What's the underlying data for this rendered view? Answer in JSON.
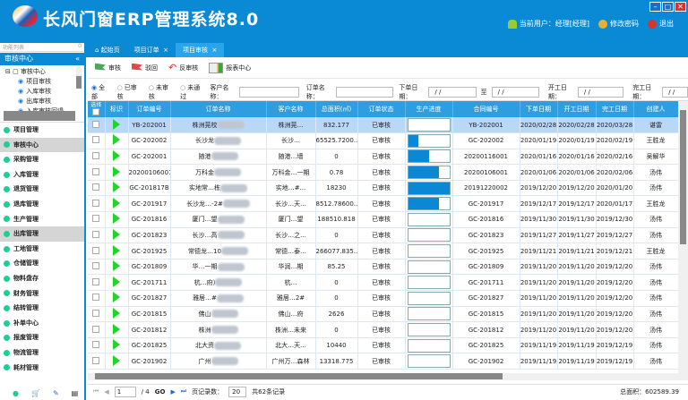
{
  "app": {
    "title": "长风门窗ERP管理系统8.0",
    "logo_icon": "swirl-logo"
  },
  "window": {
    "minimize": "–",
    "maximize": "□",
    "close": "✕"
  },
  "userbar": {
    "current_user": "当前用户：经理[经理]",
    "change_password": "修改密码",
    "logout": "退出"
  },
  "sidebar": {
    "search_placeholder": "功能列表",
    "search_badge": "0",
    "section": "审核中心",
    "collapse": "«",
    "tree": {
      "root": "审核中心",
      "items": [
        "项目审核",
        "入库审核",
        "出库审核",
        "入库审核回退"
      ]
    },
    "menu": [
      "项目管理",
      "审核中心",
      "采购管理",
      "入库管理",
      "退货管理",
      "退库管理",
      "生产管理",
      "出库管理",
      "工地管理",
      "仓储管理",
      "物料盘存",
      "财务管理",
      "结转管理",
      "补单中心",
      "报废管理",
      "物流管理",
      "耗材管理"
    ],
    "selected": [
      "审核中心",
      "出库管理"
    ]
  },
  "tabs": [
    {
      "label": "起始页"
    },
    {
      "label": "项目订单",
      "close": "×"
    },
    {
      "label": "项目审核",
      "close": "×",
      "active": true
    }
  ],
  "toolbar": {
    "audit": "审核",
    "reject": "驳回",
    "unaudit": "反审核",
    "report": "报表中心"
  },
  "filters": {
    "radios": [
      "全部",
      "已审核",
      "未审核",
      "未通过"
    ],
    "selected": "全部",
    "customer_label": "客户名称：",
    "order_label": "订单名称：",
    "order_date_label": "下单日期：",
    "to_label": "至",
    "start_label": "开工日期：",
    "finish_label": "完工日期：",
    "date_placeholder": "/ /"
  },
  "table": {
    "columns": [
      "选择",
      "标识",
      "订单编号",
      "订单名称",
      "客户名称",
      "总面积(㎡)",
      "订单状态",
      "生产进度",
      "合同编号",
      "下单日期",
      "开工日期",
      "完工日期",
      "创建人"
    ],
    "rows": [
      [
        "YB-202001",
        "株洲莞校",
        "株洲莞…",
        "832.177",
        "已审核",
        0,
        "YB-202001",
        "2020/02/28",
        "2020/02/28",
        "2020/03/28",
        "谌雷"
      ],
      [
        "GC-202002",
        "长沙龙",
        "长沙…",
        "65525.7200...",
        "已审核",
        25,
        "GC-202002",
        "2020/01/19",
        "2020/01/19",
        "2020/02/19",
        "王胜龙"
      ],
      [
        "GC-202001",
        "随港",
        "随港…墙",
        "0",
        "已审核",
        50,
        "20200116001",
        "2020/01/16",
        "2020/01/16",
        "2020/02/16",
        "吴解华"
      ],
      [
        "20200106001",
        "万科金",
        "万科金…一期",
        "0.78",
        "已审核",
        75,
        "20200106001",
        "2020/01/06",
        "2020/01/06",
        "2020/02/06",
        "汤伟"
      ],
      [
        "GC-201817B",
        "实地常…栋",
        "实地…#...",
        "18230",
        "已审核",
        100,
        "20191220002",
        "2019/12/20",
        "2019/12/20",
        "2020/01/20",
        "汤伟"
      ],
      [
        "GC-201917",
        "长沙龙…-2#",
        "长沙…天...",
        "8512.78600...",
        "已审核",
        75,
        "GC-201917",
        "2019/12/17",
        "2019/12/17",
        "2020/01/17",
        "王胜龙"
      ],
      [
        "GC-201816",
        "厦门…望",
        "厦门…望",
        "188510.818",
        "已审核",
        0,
        "GC-201816",
        "2019/11/30",
        "2019/11/30",
        "2019/12/30",
        "汤伟"
      ],
      [
        "GC-201823",
        "长沙…高",
        "长沙…之...",
        "0",
        "已审核",
        0,
        "GC-201823",
        "2019/11/27",
        "2019/11/27",
        "2019/12/27",
        "汤伟"
      ],
      [
        "GC-201925",
        "常德龙…10",
        "常德…泰...",
        "266077.835...",
        "已审核",
        0,
        "GC-201925",
        "2019/11/21",
        "2019/11/21",
        "2019/12/21",
        "王胜龙"
      ],
      [
        "GC-201809",
        "华…一期",
        "华润…期",
        "85.25",
        "已审核",
        0,
        "GC-201809",
        "2019/11/20",
        "2019/11/20",
        "2019/12/20",
        "汤伟"
      ],
      [
        "GC-201711",
        "杭…府)",
        "杭…",
        "0",
        "已审核",
        0,
        "GC-201711",
        "2019/11/20",
        "2019/11/20",
        "2019/12/20",
        "汤伟"
      ],
      [
        "GC-201827",
        "雅居…#",
        "雅居…2#",
        "0",
        "已审核",
        0,
        "GC-201827",
        "2019/11/20",
        "2019/11/20",
        "2019/12/20",
        "汤伟"
      ],
      [
        "GC-201815",
        "佛山",
        "佛山…府",
        "2626",
        "已审核",
        0,
        "GC-201815",
        "2019/11/20",
        "2019/11/20",
        "2019/12/20",
        "汤伟"
      ],
      [
        "GC-201812",
        "株洲",
        "株洲…未来",
        "0",
        "已审核",
        0,
        "GC-201812",
        "2019/11/20",
        "2019/11/20",
        "2019/12/20",
        "汤伟"
      ],
      [
        "GC-201825",
        "北大资",
        "北大…天...",
        "10440",
        "已审核",
        0,
        "GC-201825",
        "2019/11/19",
        "2019/11/19",
        "2019/12/19",
        "汤伟"
      ],
      [
        "GC-201902",
        "广州",
        "广州万…森林",
        "13318.775",
        "已审核",
        0,
        "GC-201902",
        "2019/11/19",
        "2019/11/19",
        "2019/12/19",
        "汤伟"
      ]
    ],
    "selected_row": 0
  },
  "pager": {
    "first": "⏮",
    "prev": "◀",
    "page": "1",
    "of": "/ 4",
    "go": "GO",
    "next": "▶",
    "last": "⏭",
    "page_size_label": "页记录数：",
    "page_size": "20",
    "total_records": "共62条记录",
    "total_area": "总面积：602589.39"
  },
  "colors": {
    "header": "#0a8ad4",
    "accent": "#2e9ee0",
    "progress": "#0a88d6",
    "selected_row": "#b9d8f6",
    "flag_audit": "#3a9a4a",
    "flag_reject": "#e04a4a"
  }
}
